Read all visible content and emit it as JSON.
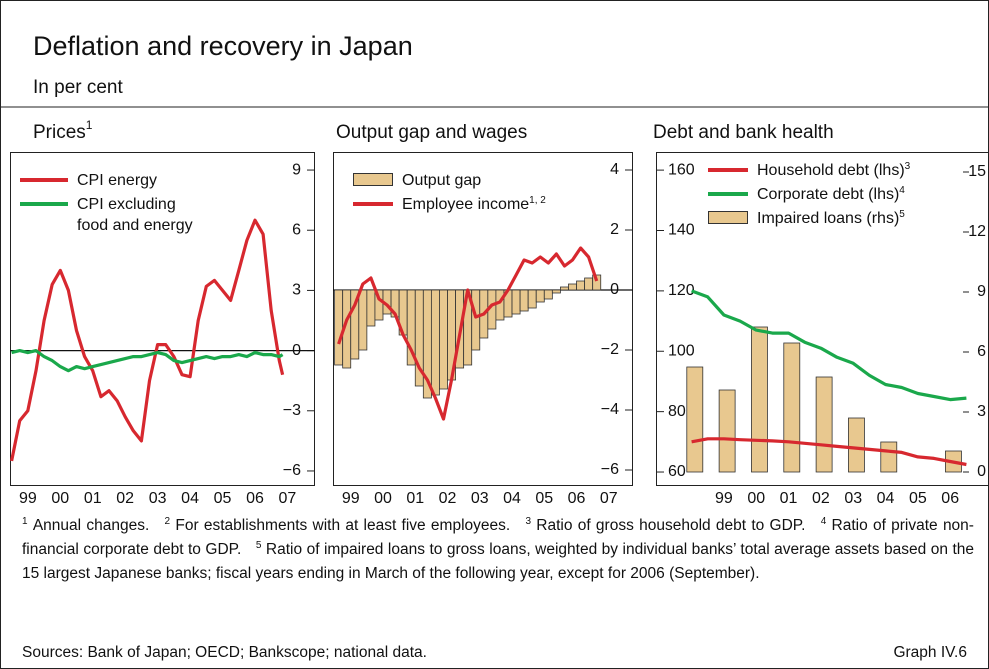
{
  "title": "Deflation and recovery in Japan",
  "subtitle": "In per cent",
  "chart_data": [
    {
      "type": "line",
      "title": "Prices",
      "title_note": "1",
      "y_axis_position": "right",
      "xlim": [
        1998.95,
        2008.35
      ],
      "xticks": [
        {
          "value": 1999.5,
          "label": "99"
        },
        {
          "value": 2000.5,
          "label": "00"
        },
        {
          "value": 2001.5,
          "label": "01"
        },
        {
          "value": 2002.5,
          "label": "02"
        },
        {
          "value": 2003.5,
          "label": "03"
        },
        {
          "value": 2004.5,
          "label": "04"
        },
        {
          "value": 2005.5,
          "label": "05"
        },
        {
          "value": 2006.5,
          "label": "06"
        },
        {
          "value": 2007.5,
          "label": "07"
        }
      ],
      "ylim": [
        -6.7,
        9.9
      ],
      "yticks": [
        9,
        6,
        3,
        0,
        {
          "value": -3,
          "label": "−3"
        },
        {
          "value": -6,
          "label": "−6"
        }
      ],
      "x": [
        1999.0,
        1999.25,
        1999.5,
        1999.75,
        2000.0,
        2000.25,
        2000.5,
        2000.75,
        2001.0,
        2001.25,
        2001.5,
        2001.75,
        2002.0,
        2002.25,
        2002.5,
        2002.75,
        2003.0,
        2003.25,
        2003.5,
        2003.75,
        2004.0,
        2004.25,
        2004.5,
        2004.75,
        2005.0,
        2005.25,
        2005.5,
        2005.75,
        2006.0,
        2006.25,
        2006.5,
        2006.75,
        2007.0,
        2007.25,
        2007.35
      ],
      "series": [
        {
          "name": "CPI energy",
          "color": "#d7282f",
          "values": [
            -5.5,
            -3.5,
            -3,
            -1,
            1.5,
            3.3,
            4.0,
            3,
            1,
            -0.3,
            -1,
            -2.3,
            -2,
            -2.5,
            -3.3,
            -4,
            -4.5,
            -1.5,
            0.3,
            0.3,
            -0.3,
            -1.2,
            -1.3,
            1.5,
            3.2,
            3.5,
            3,
            2.5,
            4,
            5.5,
            6.5,
            5.8,
            2,
            -0.5,
            -1.2
          ]
        },
        {
          "name": "CPI excluding food and energy",
          "color": "#1aa84b",
          "values": [
            -0.1,
            0,
            -0.1,
            0,
            -0.3,
            -0.5,
            -0.8,
            -1,
            -0.8,
            -0.9,
            -0.8,
            -0.7,
            -0.6,
            -0.5,
            -0.4,
            -0.3,
            -0.3,
            -0.2,
            -0.1,
            -0.2,
            -0.5,
            -0.6,
            -0.5,
            -0.4,
            -0.3,
            -0.4,
            -0.3,
            -0.3,
            -0.2,
            -0.3,
            -0.1,
            -0.2,
            -0.2,
            -0.3,
            -0.2
          ]
        }
      ]
    },
    {
      "type": "bar",
      "title": "Output gap and wages",
      "y_axis_position": "right",
      "xlim": [
        1998.95,
        2008.25
      ],
      "xticks": [
        {
          "value": 1999.5,
          "label": "99"
        },
        {
          "value": 2000.5,
          "label": "00"
        },
        {
          "value": 2001.5,
          "label": "01"
        },
        {
          "value": 2002.5,
          "label": "02"
        },
        {
          "value": 2003.5,
          "label": "03"
        },
        {
          "value": 2004.5,
          "label": "04"
        },
        {
          "value": 2005.5,
          "label": "05"
        },
        {
          "value": 2006.5,
          "label": "06"
        },
        {
          "value": 2007.5,
          "label": "07"
        }
      ],
      "ylim": [
        -6.5,
        4.6
      ],
      "yticks": [
        4,
        2,
        0,
        {
          "value": -2,
          "label": "−2"
        },
        {
          "value": -4,
          "label": "−4"
        },
        {
          "value": -6,
          "label": "−6"
        }
      ],
      "x": [
        1999.125,
        1999.375,
        1999.625,
        1999.875,
        2000.125,
        2000.375,
        2000.625,
        2000.875,
        2001.125,
        2001.375,
        2001.625,
        2001.875,
        2002.125,
        2002.375,
        2002.625,
        2002.875,
        2003.125,
        2003.375,
        2003.625,
        2003.875,
        2004.125,
        2004.375,
        2004.625,
        2004.875,
        2005.125,
        2005.375,
        2005.625,
        2005.875,
        2006.125,
        2006.375,
        2006.625,
        2006.875,
        2007.125
      ],
      "series": [
        {
          "name": "Output gap",
          "type": "bar",
          "color": "#e8c88f",
          "values": [
            -2.5,
            -2.6,
            -2.3,
            -2.0,
            -1.2,
            -1.0,
            -0.8,
            -0.9,
            -1.5,
            -2.5,
            -3.2,
            -3.6,
            -3.5,
            -3.3,
            -3.0,
            -2.6,
            -2.5,
            -2.0,
            -1.6,
            -1.3,
            -1.0,
            -0.9,
            -0.8,
            -0.7,
            -0.6,
            -0.4,
            -0.3,
            -0.1,
            0.1,
            0.2,
            0.3,
            0.4,
            0.5
          ]
        },
        {
          "name": "Employee income",
          "name_note": "1, 2",
          "type": "line",
          "color": "#d7282f",
          "values": [
            -1.8,
            -1.0,
            -0.5,
            0.2,
            0.4,
            -0.3,
            -0.5,
            -0.8,
            -1.5,
            -2.0,
            -2.6,
            -3.0,
            -3.6,
            -4.3,
            -3.0,
            -1.5,
            0,
            -0.9,
            -0.8,
            -0.5,
            -0.4,
            0,
            0.5,
            1.0,
            0.9,
            1.1,
            0.9,
            1.2,
            0.8,
            1.0,
            1.4,
            1.1,
            0.3
          ]
        }
      ]
    },
    {
      "type": "bar",
      "title": "Debt and bank health",
      "y_axis_position": "left",
      "xlim": [
        1997.4,
        2007.7
      ],
      "xticks": [
        {
          "value": 1999.5,
          "label": "99"
        },
        {
          "value": 2000.5,
          "label": "00"
        },
        {
          "value": 2001.5,
          "label": "01"
        },
        {
          "value": 2002.5,
          "label": "02"
        },
        {
          "value": 2003.5,
          "label": "03"
        },
        {
          "value": 2004.5,
          "label": "04"
        },
        {
          "value": 2005.5,
          "label": "05"
        },
        {
          "value": 2006.5,
          "label": "06"
        }
      ],
      "ylim": [
        55.7,
        166
      ],
      "yticks": [
        160,
        140,
        120,
        100,
        80,
        60
      ],
      "y2lim": [
        -0.65,
        16
      ],
      "y2ticks": [
        15,
        12,
        9,
        6,
        3,
        0
      ],
      "series": [
        {
          "name": "Household debt (lhs)",
          "name_note": "3",
          "type": "line",
          "color": "#d7282f",
          "x": [
            1998.5,
            1999.0,
            1999.5,
            2000.0,
            2000.5,
            2001.0,
            2001.5,
            2002.0,
            2002.5,
            2003.0,
            2003.5,
            2004.0,
            2004.5,
            2005.0,
            2005.5,
            2006.0,
            2006.5,
            2007.0
          ],
          "values": [
            70,
            71,
            71,
            70.7,
            70.5,
            70.3,
            70,
            69.5,
            69,
            68.5,
            68,
            67.5,
            67,
            66.5,
            65,
            64.5,
            63.5,
            62.5
          ]
        },
        {
          "name": "Corporate debt (lhs)",
          "name_note": "4",
          "type": "line",
          "color": "#1aa84b",
          "x": [
            1998.5,
            1999.0,
            1999.5,
            2000.0,
            2000.5,
            2001.0,
            2001.5,
            2002.0,
            2002.5,
            2003.0,
            2003.5,
            2004.0,
            2004.5,
            2005.0,
            2005.5,
            2006.0,
            2006.5,
            2007.0
          ],
          "values": [
            120,
            118,
            112,
            110,
            107,
            106,
            106,
            103,
            101,
            98,
            96,
            92,
            89,
            88,
            86,
            85,
            84,
            84.5
          ]
        },
        {
          "name": "Impaired loans (rhs)",
          "name_note": "5",
          "type": "bar",
          "axis": "y2",
          "color": "#e8c88f",
          "x": [
            1998.6,
            1999.6,
            2000.6,
            2001.6,
            2002.6,
            2003.6,
            2004.6,
            2006.6
          ],
          "values": [
            5.25,
            4.1,
            7.25,
            6.45,
            4.75,
            2.7,
            1.5,
            1.05
          ]
        }
      ]
    }
  ],
  "footnotes": [
    {
      "mark": "1",
      "text": "Annual changes."
    },
    {
      "mark": "2",
      "text": "For establishments with at least five employees."
    },
    {
      "mark": "3",
      "text": "Ratio of gross household debt to GDP."
    },
    {
      "mark": "4",
      "text": "Ratio of private non-financial corporate debt to GDP."
    },
    {
      "mark": "5",
      "text": "Ratio of impaired loans to gross loans, weighted by individual banks’ total average assets based on the 15 largest Japanese banks; fiscal years ending in March of the following year, except for 2006 (September)."
    }
  ],
  "sources": "Sources: Bank of Japan; OECD; Bankscope; national data.",
  "graph_label": "Graph IV.6"
}
